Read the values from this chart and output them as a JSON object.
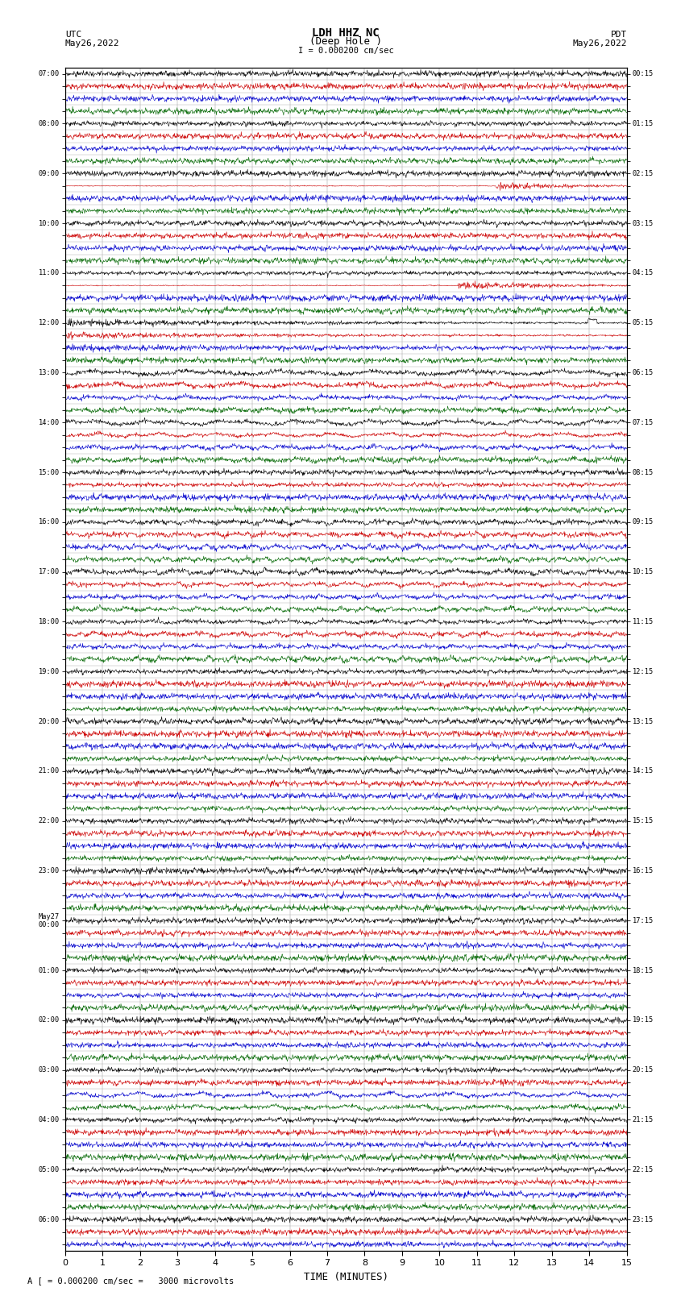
{
  "title_line1": "LDH HHZ NC",
  "title_line2": "(Deep Hole )",
  "title_line3": "I = 0.000200 cm/sec",
  "label_utc": "UTC",
  "label_utc_date": "May26,2022",
  "label_pdt": "PDT",
  "label_pdt_date": "May26,2022",
  "xlabel": "TIME (MINUTES)",
  "footer": "A [ = 0.000200 cm/sec =   3000 microvolts",
  "figsize": [
    8.5,
    16.13
  ],
  "dpi": 100,
  "xmin": 0,
  "xmax": 15,
  "bg_color": "#ffffff",
  "trace_linewidth": 0.4,
  "colors": [
    "#000000",
    "#cc0000",
    "#0000cc",
    "#006600"
  ],
  "utc_labels": [
    "07:00",
    "",
    "",
    "",
    "08:00",
    "",
    "",
    "",
    "09:00",
    "",
    "",
    "",
    "10:00",
    "",
    "",
    "",
    "11:00",
    "",
    "",
    "",
    "12:00",
    "",
    "",
    "",
    "13:00",
    "",
    "",
    "",
    "14:00",
    "",
    "",
    "",
    "15:00",
    "",
    "",
    "",
    "16:00",
    "",
    "",
    "",
    "17:00",
    "",
    "",
    "",
    "18:00",
    "",
    "",
    "",
    "19:00",
    "",
    "",
    "",
    "20:00",
    "",
    "",
    "",
    "21:00",
    "",
    "",
    "",
    "22:00",
    "",
    "",
    "",
    "23:00",
    "",
    "",
    "",
    "May27\n00:00",
    "",
    "",
    "",
    "01:00",
    "",
    "",
    "",
    "02:00",
    "",
    "",
    "",
    "03:00",
    "",
    "",
    "",
    "04:00",
    "",
    "",
    "",
    "05:00",
    "",
    "",
    "",
    "06:00",
    "",
    ""
  ],
  "pdt_labels": [
    "00:15",
    "",
    "",
    "",
    "01:15",
    "",
    "",
    "",
    "02:15",
    "",
    "",
    "",
    "03:15",
    "",
    "",
    "",
    "04:15",
    "",
    "",
    "",
    "05:15",
    "",
    "",
    "",
    "06:15",
    "",
    "",
    "",
    "07:15",
    "",
    "",
    "",
    "08:15",
    "",
    "",
    "",
    "09:15",
    "",
    "",
    "",
    "10:15",
    "",
    "",
    "",
    "11:15",
    "",
    "",
    "",
    "12:15",
    "",
    "",
    "",
    "13:15",
    "",
    "",
    "",
    "14:15",
    "",
    "",
    "",
    "15:15",
    "",
    "",
    "",
    "16:15",
    "",
    "",
    "",
    "17:15",
    "",
    "",
    "",
    "18:15",
    "",
    "",
    "",
    "19:15",
    "",
    "",
    "",
    "20:15",
    "",
    "",
    "",
    "21:15",
    "",
    "",
    "",
    "22:15",
    "",
    "",
    "",
    "23:15",
    "",
    ""
  ],
  "xticks": [
    0,
    1,
    2,
    3,
    4,
    5,
    6,
    7,
    8,
    9,
    10,
    11,
    12,
    13,
    14,
    15
  ],
  "separator_color": "#aaaaaa",
  "separator_lw": 0.3,
  "grid_color": "#888888",
  "grid_lw": 0.3
}
